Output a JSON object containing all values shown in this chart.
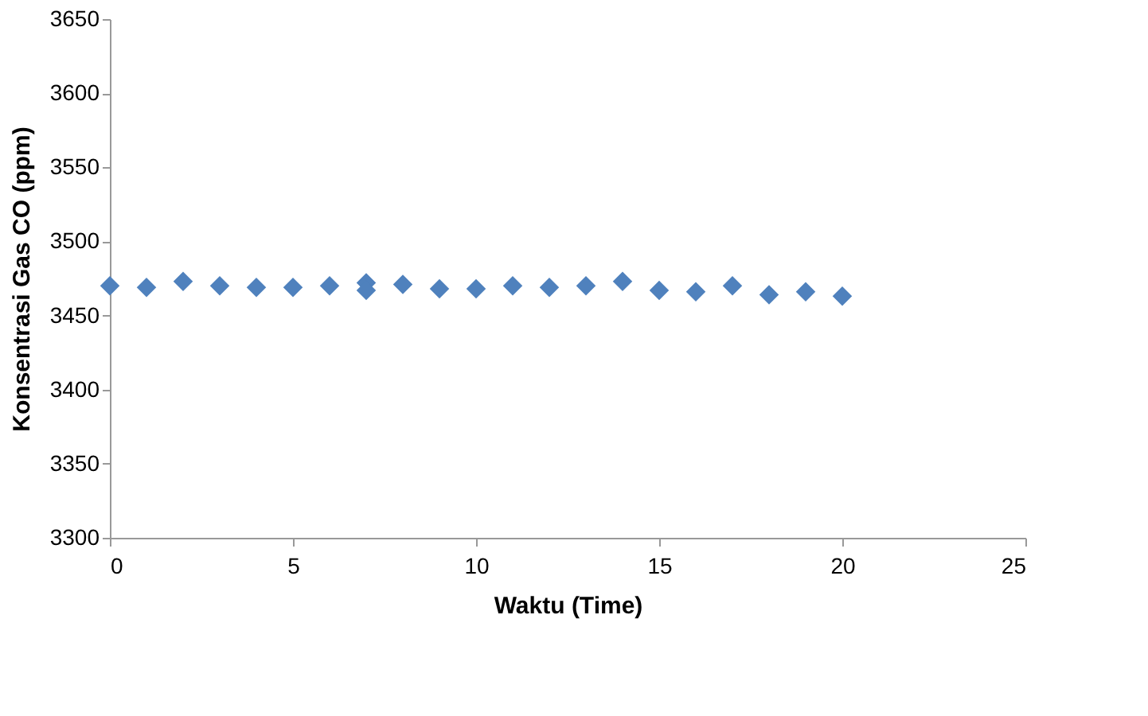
{
  "chart_data": {
    "type": "scatter",
    "xlabel": "Waktu (Time)",
    "ylabel": "Konsentrasi Gas CO (ppm)",
    "x": [
      0,
      1,
      2,
      3,
      4,
      5,
      6,
      7,
      7,
      8,
      9,
      10,
      11,
      12,
      13,
      14,
      15,
      16,
      17,
      18,
      19,
      20
    ],
    "series": [
      {
        "color": "#4f81bd",
        "values": [
          3470,
          3469,
          3473,
          3470,
          3469,
          3469,
          3470,
          3472,
          3467,
          3471,
          3468,
          3468,
          3470,
          3469,
          3470,
          3473,
          3467,
          3466,
          3470,
          3464,
          3466,
          3463
        ]
      }
    ],
    "xlim": [
      0,
      25
    ],
    "xticks": [
      0,
      5,
      10,
      15,
      20,
      25
    ],
    "ylim": [
      3300,
      3650
    ],
    "yticks": [
      3300,
      3350,
      3400,
      3450,
      3500,
      3550,
      3600,
      3650
    ],
    "marker": "diamond",
    "grid": false,
    "legend": false
  }
}
